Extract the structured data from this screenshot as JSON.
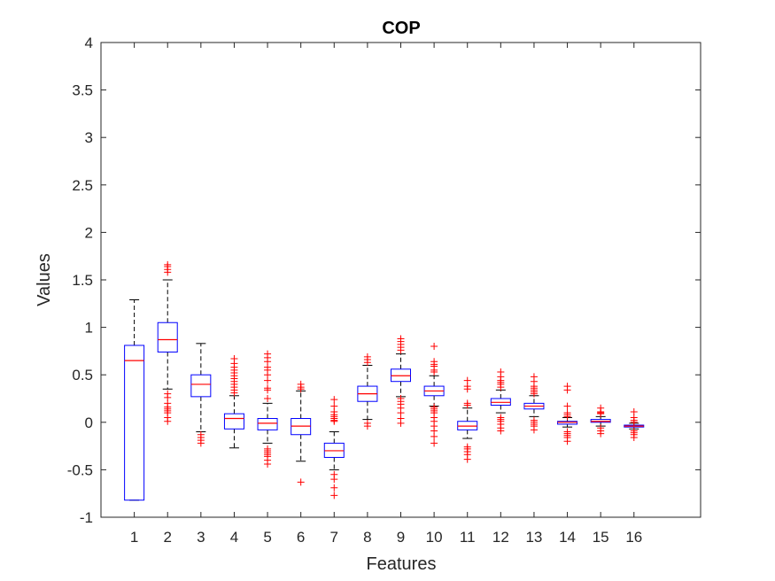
{
  "chart_data": {
    "type": "boxplot",
    "title": "COP",
    "xlabel": "Features",
    "ylabel": "Values",
    "ylim": [
      -1,
      4
    ],
    "xlim": [
      0,
      18
    ],
    "yticks": [
      -1,
      -0.5,
      0,
      0.5,
      1,
      1.5,
      2,
      2.5,
      3,
      3.5,
      4
    ],
    "ytick_labels": [
      "-1",
      "-0.5",
      "0",
      "0.5",
      "1",
      "1.5",
      "2",
      "2.5",
      "3",
      "3.5",
      "4"
    ],
    "categories": [
      "1",
      "2",
      "3",
      "4",
      "5",
      "6",
      "7",
      "8",
      "9",
      "10",
      "11",
      "12",
      "13",
      "14",
      "15",
      "16"
    ],
    "grid": false,
    "colors": {
      "box": "#0000ff",
      "median": "#ff0000",
      "whisker": "#000000",
      "outlier": "#ff0000",
      "axis": "#262626"
    },
    "boxes": [
      {
        "feature": "1",
        "q1": -0.82,
        "median": 0.65,
        "q3": 0.81,
        "whisker_low": -0.82,
        "whisker_high": 1.29,
        "outliers": []
      },
      {
        "feature": "2",
        "q1": 0.74,
        "median": 0.87,
        "q3": 1.05,
        "whisker_low": 0.35,
        "whisker_high": 1.5,
        "outliers": [
          1.66,
          1.64,
          1.61,
          1.58,
          0.3,
          0.26,
          0.2,
          0.16,
          0.14,
          0.12,
          0.1,
          0.05,
          0.01
        ]
      },
      {
        "feature": "3",
        "q1": 0.27,
        "median": 0.4,
        "q3": 0.5,
        "whisker_low": -0.1,
        "whisker_high": 0.83,
        "outliers": [
          -0.13,
          -0.16,
          -0.19,
          -0.22
        ]
      },
      {
        "feature": "4",
        "q1": -0.07,
        "median": 0.04,
        "q3": 0.09,
        "whisker_low": -0.27,
        "whisker_high": 0.28,
        "outliers": [
          0.67,
          0.62,
          0.58,
          0.55,
          0.52,
          0.49,
          0.46,
          0.43,
          0.4,
          0.37,
          0.34,
          0.31
        ]
      },
      {
        "feature": "5",
        "q1": -0.08,
        "median": -0.01,
        "q3": 0.04,
        "whisker_low": -0.22,
        "whisker_high": 0.2,
        "outliers": [
          0.72,
          0.68,
          0.64,
          0.58,
          0.55,
          0.5,
          0.44,
          0.36,
          0.34,
          0.25,
          -0.28,
          -0.3,
          -0.32,
          -0.34,
          -0.36,
          -0.4,
          -0.44
        ]
      },
      {
        "feature": "6",
        "q1": -0.13,
        "median": -0.04,
        "q3": 0.04,
        "whisker_low": -0.41,
        "whisker_high": 0.33,
        "outliers": [
          0.4,
          0.37,
          0.35,
          -0.63
        ]
      },
      {
        "feature": "7",
        "q1": -0.37,
        "median": -0.3,
        "q3": -0.22,
        "whisker_low": -0.5,
        "whisker_high": -0.1,
        "outliers": [
          0.24,
          0.17,
          0.11,
          0.08,
          0.06,
          0.04,
          0.02,
          0.01,
          -0.55,
          -0.6,
          -0.69,
          -0.77
        ]
      },
      {
        "feature": "8",
        "q1": 0.22,
        "median": 0.3,
        "q3": 0.38,
        "whisker_low": 0.03,
        "whisker_high": 0.6,
        "outliers": [
          0.69,
          0.66,
          0.63,
          -0.01,
          -0.04
        ]
      },
      {
        "feature": "9",
        "q1": 0.43,
        "median": 0.49,
        "q3": 0.56,
        "whisker_low": 0.27,
        "whisker_high": 0.72,
        "outliers": [
          0.88,
          0.85,
          0.82,
          0.79,
          0.76,
          0.25,
          0.22,
          0.19,
          0.15,
          0.1,
          0.04,
          -0.01
        ]
      },
      {
        "feature": "10",
        "q1": 0.28,
        "median": 0.33,
        "q3": 0.38,
        "whisker_low": 0.17,
        "whisker_high": 0.49,
        "outliers": [
          0.8,
          0.64,
          0.61,
          0.59,
          0.55,
          0.53,
          0.16,
          0.14,
          0.12,
          0.1,
          0.05,
          0.01,
          -0.04,
          -0.09,
          -0.15,
          -0.22
        ]
      },
      {
        "feature": "11",
        "q1": -0.08,
        "median": -0.04,
        "q3": 0.01,
        "whisker_low": -0.17,
        "whisker_high": 0.15,
        "outliers": [
          0.44,
          0.38,
          0.35,
          0.2,
          0.18,
          -0.26,
          -0.28,
          -0.31,
          -0.34,
          -0.39
        ]
      },
      {
        "feature": "12",
        "q1": 0.18,
        "median": 0.21,
        "q3": 0.25,
        "whisker_low": 0.1,
        "whisker_high": 0.34,
        "outliers": [
          0.53,
          0.48,
          0.44,
          0.42,
          0.4,
          0.37,
          0.05,
          0.03,
          0.01,
          -0.02,
          -0.06,
          -0.09
        ]
      },
      {
        "feature": "13",
        "q1": 0.14,
        "median": 0.17,
        "q3": 0.2,
        "whisker_low": 0.06,
        "whisker_high": 0.28,
        "outliers": [
          0.48,
          0.43,
          0.38,
          0.36,
          0.34,
          0.32,
          0.3,
          0.02,
          0.0,
          -0.02,
          -0.04,
          -0.08
        ]
      },
      {
        "feature": "14",
        "q1": -0.02,
        "median": 0.0,
        "q3": 0.01,
        "whisker_low": -0.05,
        "whisker_high": 0.05,
        "outliers": [
          0.38,
          0.34,
          0.17,
          0.1,
          0.08,
          0.06,
          -0.1,
          -0.12,
          -0.14,
          -0.16,
          -0.2
        ]
      },
      {
        "feature": "15",
        "q1": 0.0,
        "median": 0.01,
        "q3": 0.03,
        "whisker_low": -0.04,
        "whisker_high": 0.06,
        "outliers": [
          0.15,
          0.11,
          0.1,
          0.09,
          -0.06,
          -0.09,
          -0.12
        ]
      },
      {
        "feature": "16",
        "q1": -0.05,
        "median": -0.04,
        "q3": -0.03,
        "whisker_low": -0.07,
        "whisker_high": -0.01,
        "outliers": [
          0.11,
          0.05,
          0.02,
          0.0,
          -0.09,
          -0.11,
          -0.13,
          -0.16
        ]
      }
    ]
  }
}
